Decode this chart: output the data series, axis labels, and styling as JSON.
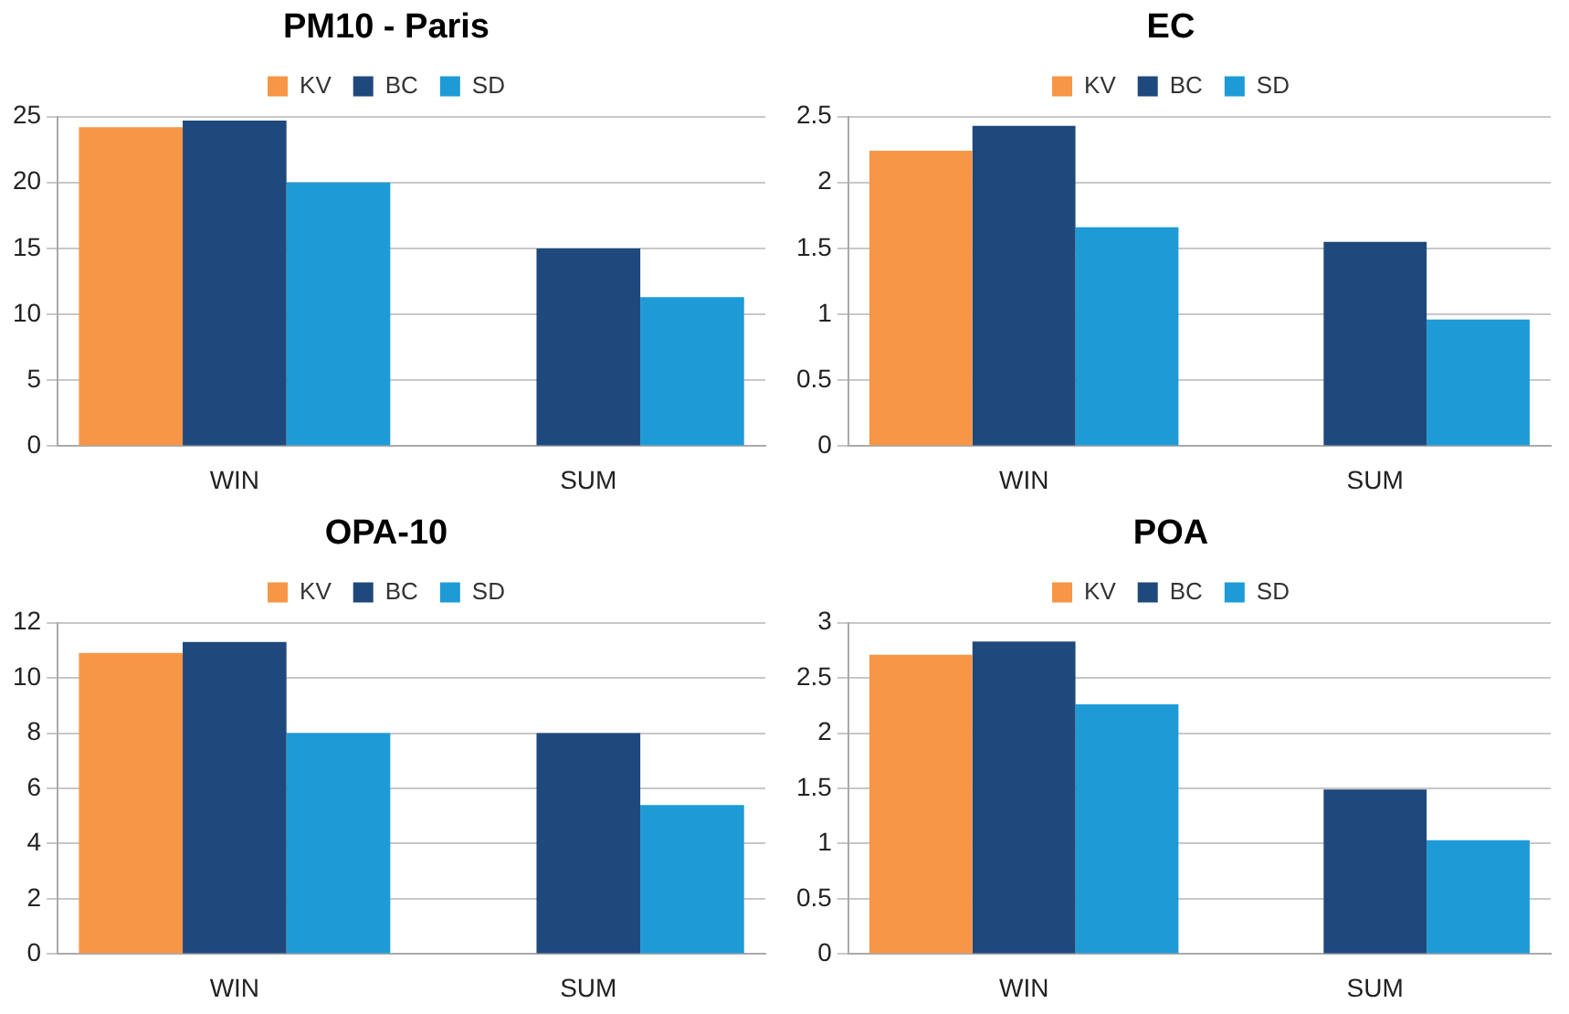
{
  "chart_data": [
    {
      "type": "bar",
      "title": "PM10 - Paris",
      "categories": [
        "WIN",
        "SUM"
      ],
      "series": [
        {
          "name": "KV",
          "color": "#f79646",
          "values": [
            24.2,
            null
          ]
        },
        {
          "name": "BC",
          "color": "#1f497d",
          "values": [
            24.7,
            15.0
          ]
        },
        {
          "name": "SD",
          "color": "#1e9bd7",
          "values": [
            20.0,
            11.3
          ]
        }
      ],
      "ylim": [
        0,
        25
      ],
      "yticks": [
        0,
        5,
        10,
        15,
        20,
        25
      ],
      "grid": "y",
      "legend": "top"
    },
    {
      "type": "bar",
      "title": "EC",
      "categories": [
        "WIN",
        "SUM"
      ],
      "series": [
        {
          "name": "KV",
          "color": "#f79646",
          "values": [
            2.24,
            null
          ]
        },
        {
          "name": "BC",
          "color": "#1f497d",
          "values": [
            2.43,
            1.55
          ]
        },
        {
          "name": "SD",
          "color": "#1e9bd7",
          "values": [
            1.66,
            0.96
          ]
        }
      ],
      "ylim": [
        0,
        2.5
      ],
      "yticks": [
        0,
        0.5,
        1,
        1.5,
        2,
        2.5
      ],
      "grid": "y",
      "legend": "top"
    },
    {
      "type": "bar",
      "title": "OPA-10",
      "categories": [
        "WIN",
        "SUM"
      ],
      "series": [
        {
          "name": "KV",
          "color": "#f79646",
          "values": [
            10.9,
            null
          ]
        },
        {
          "name": "BC",
          "color": "#1f497d",
          "values": [
            11.3,
            8.0
          ]
        },
        {
          "name": "SD",
          "color": "#1e9bd7",
          "values": [
            8.0,
            5.4
          ]
        }
      ],
      "ylim": [
        0,
        12
      ],
      "yticks": [
        0,
        2,
        4,
        6,
        8,
        10,
        12
      ],
      "grid": "y",
      "legend": "top"
    },
    {
      "type": "bar",
      "title": "POA",
      "categories": [
        "WIN",
        "SUM"
      ],
      "series": [
        {
          "name": "KV",
          "color": "#f79646",
          "values": [
            2.71,
            null
          ]
        },
        {
          "name": "BC",
          "color": "#1f497d",
          "values": [
            2.83,
            1.49
          ]
        },
        {
          "name": "SD",
          "color": "#1e9bd7",
          "values": [
            2.26,
            1.03
          ]
        }
      ],
      "ylim": [
        0,
        3
      ],
      "yticks": [
        0,
        0.5,
        1,
        1.5,
        2,
        2.5,
        3
      ],
      "grid": "y",
      "legend": "top"
    }
  ]
}
